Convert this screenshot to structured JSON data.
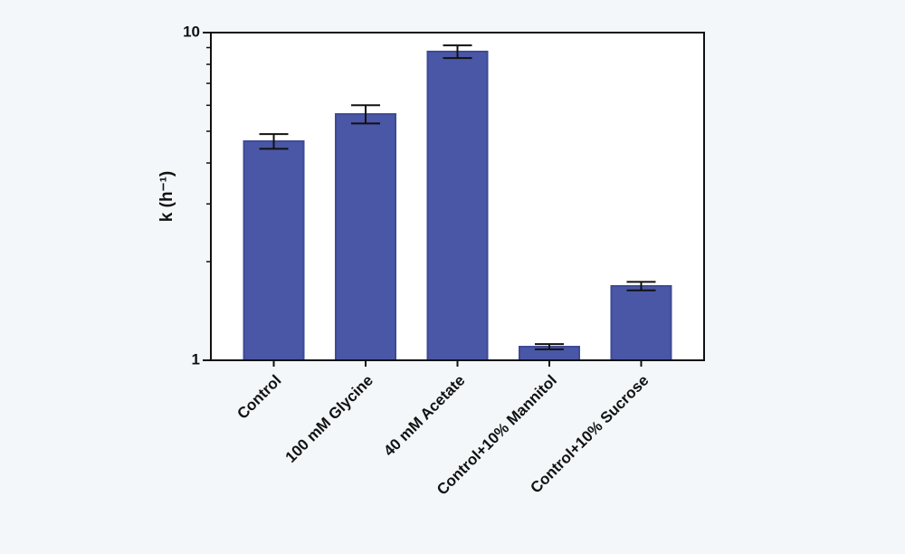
{
  "chart_data": {
    "type": "bar",
    "y_label": "k (h⁻¹)",
    "categories": [
      "Control",
      "100 mM Glycine",
      "40 mM Acetate",
      "Control+10% Mannitol",
      "Control+10% Sucrose"
    ],
    "values": [
      4.66,
      5.64,
      8.75,
      1.1,
      1.685
    ],
    "errors": [
      0.24,
      0.36,
      0.39,
      0.02,
      0.05
    ],
    "color": "#4a57a6",
    "log_scale": true,
    "ylim": [
      1,
      10
    ],
    "yticks": [
      1,
      10
    ],
    "yminor_ticks": [
      2,
      3,
      4,
      5,
      6,
      7,
      8,
      9
    ]
  }
}
